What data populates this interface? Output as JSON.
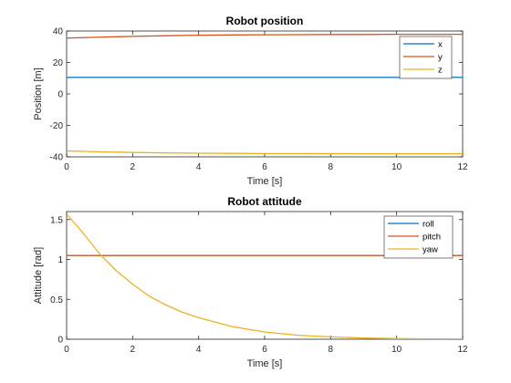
{
  "chart_data": [
    {
      "type": "line",
      "title": "Robot position",
      "xlabel": "Time [s]",
      "ylabel": "Position [m]",
      "xlim": [
        0,
        12
      ],
      "ylim": [
        -40,
        40
      ],
      "xticks": [
        "0",
        "2",
        "4",
        "6",
        "8",
        "10",
        "12"
      ],
      "yticks": [
        "-40",
        "-20",
        "0",
        "20",
        "40"
      ],
      "grid": false,
      "legend_position": "top-right",
      "series": [
        {
          "name": "x",
          "color": "#0072BD",
          "x": [
            0,
            1,
            2,
            3,
            4,
            5,
            6,
            7,
            8,
            9,
            10,
            11,
            12
          ],
          "y": [
            10.5,
            10.5,
            10.5,
            10.5,
            10.5,
            10.5,
            10.5,
            10.5,
            10.5,
            10.5,
            10.5,
            10.5,
            10.5
          ]
        },
        {
          "name": "y",
          "color": "#D95319",
          "x": [
            0,
            1,
            2,
            3,
            4,
            5,
            6,
            7,
            8,
            9,
            10,
            11,
            12
          ],
          "y": [
            35.5,
            36.1,
            36.6,
            37.0,
            37.3,
            37.5,
            37.6,
            37.7,
            37.8,
            37.8,
            37.9,
            37.9,
            37.9
          ]
        },
        {
          "name": "z",
          "color": "#EDB120",
          "x": [
            0,
            1,
            2,
            3,
            4,
            5,
            6,
            7,
            8,
            9,
            10,
            11,
            12
          ],
          "y": [
            -36.2,
            -36.8,
            -37.2,
            -37.5,
            -37.7,
            -37.8,
            -37.9,
            -37.9,
            -37.95,
            -38.0,
            -38.0,
            -38.0,
            -38.0
          ]
        }
      ]
    },
    {
      "type": "line",
      "title": "Robot attitude",
      "xlabel": "Time [s]",
      "ylabel": "Attitude [rad]",
      "xlim": [
        0,
        12
      ],
      "ylim": [
        0,
        1.6
      ],
      "xticks": [
        "0",
        "2",
        "4",
        "6",
        "8",
        "10",
        "12"
      ],
      "yticks": [
        "0",
        "0.5",
        "1",
        "1.5"
      ],
      "grid": false,
      "legend_position": "top-right",
      "series": [
        {
          "name": "roll",
          "color": "#0072BD",
          "x": [
            0,
            1,
            2,
            3,
            4,
            5,
            6,
            7,
            8,
            9,
            10,
            11,
            12
          ],
          "y": [
            1.05,
            1.05,
            1.05,
            1.05,
            1.05,
            1.05,
            1.05,
            1.05,
            1.05,
            1.05,
            1.05,
            1.05,
            1.05
          ]
        },
        {
          "name": "pitch",
          "color": "#D95319",
          "x": [
            0,
            1,
            2,
            3,
            4,
            5,
            6,
            7,
            8,
            9,
            10,
            11,
            12
          ],
          "y": [
            1.05,
            1.05,
            1.05,
            1.05,
            1.05,
            1.05,
            1.05,
            1.05,
            1.05,
            1.05,
            1.05,
            1.05,
            1.05
          ]
        },
        {
          "name": "yaw",
          "color": "#EDB120",
          "x": [
            0,
            0.5,
            1,
            1.5,
            2,
            2.5,
            3,
            3.5,
            4,
            5,
            6,
            7,
            8,
            9,
            10,
            11,
            12
          ],
          "y": [
            1.57,
            1.33,
            1.07,
            0.86,
            0.69,
            0.54,
            0.43,
            0.34,
            0.27,
            0.16,
            0.09,
            0.05,
            0.03,
            0.015,
            0.008,
            0.004,
            0.002
          ]
        }
      ]
    }
  ]
}
